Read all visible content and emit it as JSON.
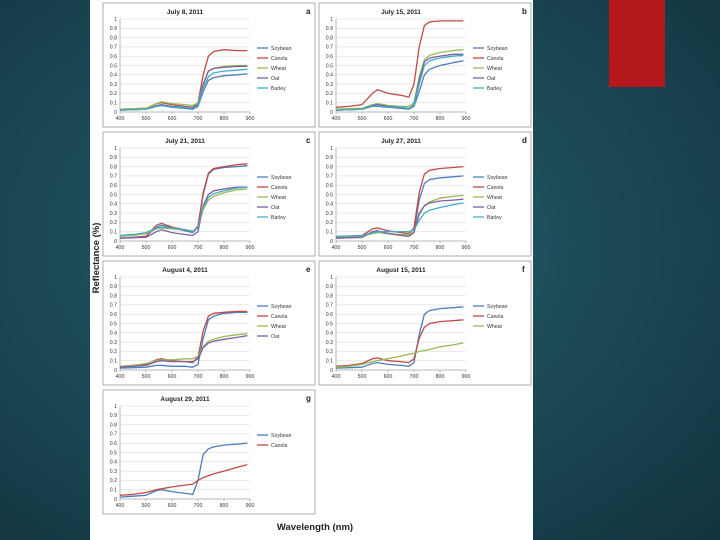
{
  "slide": {
    "background": "#1f4f5c",
    "accent": "#b3191c"
  },
  "figure": {
    "ylabel": "Reflectance (%)",
    "xlabel": "Wavelength (nm)"
  },
  "series_colors": {
    "Soybean": "#4a7ebb",
    "Canola": "#be4b48",
    "Wheat": "#98b954",
    "Oat": "#7d60a0",
    "Barley": "#46aac5"
  },
  "chart_data": [
    {
      "type": "line",
      "panel": "a",
      "title": "July 8, 2011",
      "x": [
        400,
        450,
        500,
        540,
        560,
        600,
        650,
        680,
        700,
        720,
        740,
        760,
        800,
        850,
        890
      ],
      "xlim": [
        400,
        900
      ],
      "ylim": [
        0,
        1
      ],
      "xticks": [
        400,
        500,
        600,
        700,
        800,
        900
      ],
      "yticks": [
        0,
        0.1,
        0.2,
        0.3,
        0.4,
        0.5,
        0.6,
        0.7,
        0.8,
        0.9,
        1
      ],
      "series": [
        {
          "name": "Soybean",
          "values": [
            0.02,
            0.025,
            0.03,
            0.06,
            0.07,
            0.05,
            0.04,
            0.03,
            0.06,
            0.22,
            0.34,
            0.37,
            0.39,
            0.4,
            0.41
          ]
        },
        {
          "name": "Canola",
          "values": [
            0.03,
            0.035,
            0.04,
            0.09,
            0.1,
            0.08,
            0.06,
            0.05,
            0.1,
            0.4,
            0.6,
            0.65,
            0.67,
            0.66,
            0.66
          ]
        },
        {
          "name": "Wheat",
          "values": [
            0.03,
            0.035,
            0.04,
            0.09,
            0.11,
            0.09,
            0.08,
            0.07,
            0.1,
            0.3,
            0.44,
            0.47,
            0.49,
            0.5,
            0.5
          ]
        },
        {
          "name": "Oat",
          "values": [
            0.02,
            0.025,
            0.03,
            0.07,
            0.08,
            0.06,
            0.05,
            0.04,
            0.08,
            0.3,
            0.44,
            0.47,
            0.48,
            0.49,
            0.49
          ]
        },
        {
          "name": "Barley",
          "values": [
            0.02,
            0.025,
            0.03,
            0.06,
            0.07,
            0.05,
            0.05,
            0.04,
            0.07,
            0.26,
            0.38,
            0.42,
            0.44,
            0.45,
            0.46
          ]
        }
      ]
    },
    {
      "type": "line",
      "panel": "b",
      "title": "July 15, 2011",
      "x": [
        400,
        450,
        500,
        540,
        560,
        600,
        650,
        680,
        700,
        720,
        740,
        760,
        800,
        850,
        890
      ],
      "xlim": [
        400,
        900
      ],
      "ylim": [
        0,
        1
      ],
      "xticks": [
        400,
        500,
        600,
        700,
        800,
        900
      ],
      "yticks": [
        0,
        0.1,
        0.2,
        0.3,
        0.4,
        0.5,
        0.6,
        0.7,
        0.8,
        0.9,
        1
      ],
      "series": [
        {
          "name": "Soybean",
          "values": [
            0.02,
            0.025,
            0.03,
            0.06,
            0.06,
            0.05,
            0.04,
            0.03,
            0.06,
            0.22,
            0.4,
            0.46,
            0.5,
            0.53,
            0.55
          ]
        },
        {
          "name": "Canola",
          "values": [
            0.05,
            0.06,
            0.08,
            0.2,
            0.24,
            0.2,
            0.18,
            0.16,
            0.3,
            0.7,
            0.93,
            0.97,
            0.98,
            0.98,
            0.98
          ]
        },
        {
          "name": "Wheat",
          "values": [
            0.03,
            0.035,
            0.04,
            0.08,
            0.09,
            0.07,
            0.06,
            0.06,
            0.1,
            0.38,
            0.56,
            0.61,
            0.64,
            0.66,
            0.67
          ]
        },
        {
          "name": "Oat",
          "values": [
            0.02,
            0.025,
            0.03,
            0.07,
            0.08,
            0.06,
            0.05,
            0.04,
            0.08,
            0.34,
            0.54,
            0.58,
            0.6,
            0.62,
            0.62
          ]
        },
        {
          "name": "Barley",
          "values": [
            0.02,
            0.025,
            0.03,
            0.06,
            0.07,
            0.05,
            0.05,
            0.04,
            0.07,
            0.3,
            0.5,
            0.55,
            0.58,
            0.6,
            0.61
          ]
        }
      ]
    },
    {
      "type": "line",
      "panel": "c",
      "title": "July 21, 2011",
      "x": [
        400,
        450,
        500,
        540,
        560,
        600,
        650,
        680,
        700,
        720,
        740,
        760,
        800,
        850,
        890
      ],
      "xlim": [
        400,
        900
      ],
      "ylim": [
        0,
        1
      ],
      "xticks": [
        400,
        500,
        600,
        700,
        800,
        900
      ],
      "yticks": [
        0,
        0.1,
        0.2,
        0.3,
        0.4,
        0.5,
        0.6,
        0.7,
        0.8,
        0.9,
        1
      ],
      "series": [
        {
          "name": "Soybean",
          "values": [
            0.03,
            0.035,
            0.05,
            0.15,
            0.17,
            0.14,
            0.11,
            0.09,
            0.15,
            0.5,
            0.72,
            0.77,
            0.79,
            0.8,
            0.81
          ]
        },
        {
          "name": "Canola",
          "values": [
            0.03,
            0.04,
            0.05,
            0.17,
            0.19,
            0.15,
            0.12,
            0.1,
            0.16,
            0.52,
            0.73,
            0.78,
            0.8,
            0.82,
            0.83
          ]
        },
        {
          "name": "Wheat",
          "values": [
            0.05,
            0.06,
            0.08,
            0.13,
            0.14,
            0.13,
            0.12,
            0.11,
            0.14,
            0.34,
            0.44,
            0.48,
            0.52,
            0.55,
            0.56
          ]
        },
        {
          "name": "Oat",
          "values": [
            0.03,
            0.035,
            0.04,
            0.1,
            0.12,
            0.09,
            0.07,
            0.06,
            0.1,
            0.38,
            0.5,
            0.54,
            0.56,
            0.58,
            0.58
          ]
        },
        {
          "name": "Barley",
          "values": [
            0.06,
            0.07,
            0.09,
            0.14,
            0.15,
            0.14,
            0.12,
            0.1,
            0.14,
            0.36,
            0.47,
            0.51,
            0.54,
            0.57,
            0.58
          ]
        }
      ]
    },
    {
      "type": "line",
      "panel": "d",
      "title": "July 27, 2011",
      "x": [
        400,
        450,
        500,
        540,
        560,
        600,
        650,
        680,
        700,
        720,
        740,
        760,
        800,
        850,
        890
      ],
      "xlim": [
        400,
        900
      ],
      "ylim": [
        0,
        1
      ],
      "xticks": [
        400,
        500,
        600,
        700,
        800,
        900
      ],
      "yticks": [
        0,
        0.1,
        0.2,
        0.3,
        0.4,
        0.5,
        0.6,
        0.7,
        0.8,
        0.9,
        1
      ],
      "series": [
        {
          "name": "Soybean",
          "values": [
            0.03,
            0.035,
            0.04,
            0.1,
            0.11,
            0.08,
            0.06,
            0.05,
            0.1,
            0.44,
            0.62,
            0.66,
            0.68,
            0.69,
            0.7
          ]
        },
        {
          "name": "Canola",
          "values": [
            0.04,
            0.05,
            0.06,
            0.13,
            0.14,
            0.11,
            0.09,
            0.08,
            0.14,
            0.52,
            0.72,
            0.76,
            0.78,
            0.79,
            0.8
          ]
        },
        {
          "name": "Wheat",
          "values": [
            0.04,
            0.045,
            0.05,
            0.08,
            0.09,
            0.08,
            0.07,
            0.07,
            0.1,
            0.28,
            0.38,
            0.42,
            0.46,
            0.48,
            0.49
          ]
        },
        {
          "name": "Oat",
          "values": [
            0.03,
            0.035,
            0.04,
            0.1,
            0.11,
            0.08,
            0.06,
            0.05,
            0.09,
            0.3,
            0.38,
            0.41,
            0.43,
            0.44,
            0.45
          ]
        },
        {
          "name": "Barley",
          "values": [
            0.05,
            0.055,
            0.06,
            0.09,
            0.1,
            0.1,
            0.1,
            0.1,
            0.12,
            0.22,
            0.3,
            0.33,
            0.36,
            0.39,
            0.41
          ]
        }
      ]
    },
    {
      "type": "line",
      "panel": "e",
      "title": "August 4, 2011",
      "x": [
        400,
        450,
        500,
        540,
        560,
        600,
        650,
        680,
        700,
        720,
        740,
        760,
        800,
        850,
        890
      ],
      "xlim": [
        400,
        900
      ],
      "ylim": [
        0,
        1
      ],
      "xticks": [
        400,
        500,
        600,
        700,
        800,
        900
      ],
      "yticks": [
        0,
        0.1,
        0.2,
        0.3,
        0.4,
        0.5,
        0.6,
        0.7,
        0.8,
        0.9,
        1
      ],
      "series": [
        {
          "name": "Soybean",
          "values": [
            0.02,
            0.025,
            0.03,
            0.05,
            0.05,
            0.04,
            0.04,
            0.03,
            0.06,
            0.34,
            0.54,
            0.58,
            0.61,
            0.62,
            0.62
          ]
        },
        {
          "name": "Canola",
          "values": [
            0.04,
            0.05,
            0.06,
            0.11,
            0.12,
            0.1,
            0.09,
            0.08,
            0.14,
            0.42,
            0.58,
            0.61,
            0.62,
            0.63,
            0.63
          ]
        },
        {
          "name": "Wheat",
          "values": [
            0.04,
            0.05,
            0.07,
            0.1,
            0.11,
            0.11,
            0.12,
            0.12,
            0.15,
            0.25,
            0.31,
            0.33,
            0.36,
            0.38,
            0.39
          ]
        },
        {
          "name": "Oat",
          "values": [
            0.03,
            0.04,
            0.05,
            0.09,
            0.1,
            0.09,
            0.09,
            0.09,
            0.12,
            0.24,
            0.29,
            0.31,
            0.33,
            0.35,
            0.37
          ]
        }
      ]
    },
    {
      "type": "line",
      "panel": "f",
      "title": "August 15, 2011",
      "x": [
        400,
        450,
        500,
        540,
        560,
        600,
        650,
        680,
        700,
        720,
        740,
        760,
        800,
        850,
        890
      ],
      "xlim": [
        400,
        900
      ],
      "ylim": [
        0,
        1
      ],
      "xticks": [
        400,
        500,
        600,
        700,
        800,
        900
      ],
      "yticks": [
        0,
        0.1,
        0.2,
        0.3,
        0.4,
        0.5,
        0.6,
        0.7,
        0.8,
        0.9,
        1
      ],
      "series": [
        {
          "name": "Soybean",
          "values": [
            0.02,
            0.025,
            0.03,
            0.07,
            0.08,
            0.06,
            0.05,
            0.04,
            0.08,
            0.38,
            0.6,
            0.64,
            0.66,
            0.67,
            0.68
          ]
        },
        {
          "name": "Canola",
          "values": [
            0.04,
            0.05,
            0.07,
            0.12,
            0.13,
            0.1,
            0.09,
            0.08,
            0.12,
            0.34,
            0.46,
            0.5,
            0.52,
            0.53,
            0.54
          ]
        },
        {
          "name": "Wheat",
          "values": [
            0.03,
            0.04,
            0.06,
            0.09,
            0.1,
            0.12,
            0.15,
            0.17,
            0.18,
            0.2,
            0.21,
            0.22,
            0.25,
            0.27,
            0.29
          ]
        }
      ]
    },
    {
      "type": "line",
      "panel": "g",
      "title": "August 29, 2011",
      "x": [
        400,
        450,
        500,
        540,
        560,
        600,
        650,
        680,
        700,
        720,
        740,
        760,
        800,
        850,
        890
      ],
      "xlim": [
        400,
        900
      ],
      "ylim": [
        0,
        1
      ],
      "xticks": [
        400,
        500,
        600,
        700,
        800,
        900
      ],
      "yticks": [
        0,
        0.1,
        0.2,
        0.3,
        0.4,
        0.5,
        0.6,
        0.7,
        0.8,
        0.9,
        1
      ],
      "series": [
        {
          "name": "Soybean",
          "values": [
            0.02,
            0.03,
            0.04,
            0.09,
            0.1,
            0.08,
            0.06,
            0.05,
            0.2,
            0.48,
            0.54,
            0.56,
            0.58,
            0.59,
            0.6
          ]
        },
        {
          "name": "Canola",
          "values": [
            0.04,
            0.05,
            0.07,
            0.1,
            0.11,
            0.13,
            0.15,
            0.16,
            0.2,
            0.23,
            0.25,
            0.27,
            0.3,
            0.34,
            0.37
          ]
        }
      ]
    }
  ]
}
